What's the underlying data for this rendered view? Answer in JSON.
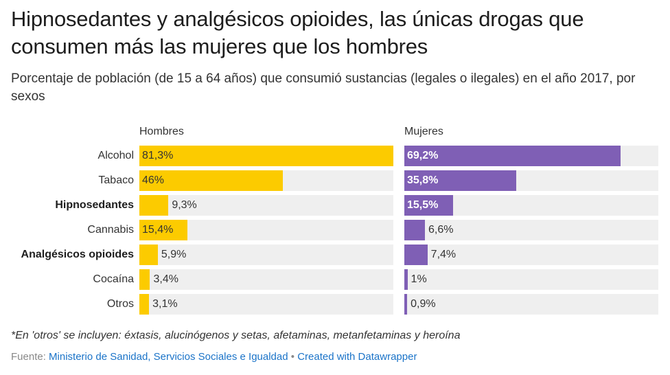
{
  "title": "Hipnosedantes y analgésicos opioides, las únicas drogas que consumen más las mujeres que los hombres",
  "subtitle": "Porcentaje de población (de 15 a 64 años) que consumió sustancias (legales o ilegales) en el año 2017, por sexos",
  "colors": {
    "hombres": "#fccb00",
    "mujeres": "#7f5fb5",
    "track": "#efefef"
  },
  "chart_data": {
    "type": "bar",
    "orientation": "horizontal",
    "categories": [
      "Alcohol",
      "Tabaco",
      "Hipnosedantes",
      "Cannabis",
      "Analgésicos opioides",
      "Cocaína",
      "Otros"
    ],
    "highlighted_categories": [
      "Hipnosedantes",
      "Analgésicos opioides"
    ],
    "xlim": [
      0,
      81.3
    ],
    "series": [
      {
        "name": "Hombres",
        "values": [
          81.3,
          46,
          9.3,
          15.4,
          5.9,
          3.4,
          3.1
        ],
        "labels": [
          "81,3%",
          "46%",
          "9,3%",
          "15,4%",
          "5,9%",
          "3,4%",
          "3,1%"
        ]
      },
      {
        "name": "Mujeres",
        "values": [
          69.2,
          35.8,
          15.5,
          6.6,
          7.4,
          1,
          0.9
        ],
        "labels": [
          "69,2%",
          "35,8%",
          "15,5%",
          "6,6%",
          "7,4%",
          "1%",
          "0,9%"
        ]
      }
    ]
  },
  "note": "*En 'otros' se incluyen: éxtasis, alucinógenos y setas, afetaminas, metanfetaminas y heroína",
  "footer": {
    "source_label": "Fuente:",
    "source_name": "Ministerio de Sanidad, Servicios Sociales e Igualdad",
    "separator": "•",
    "credit": "Created with Datawrapper"
  }
}
